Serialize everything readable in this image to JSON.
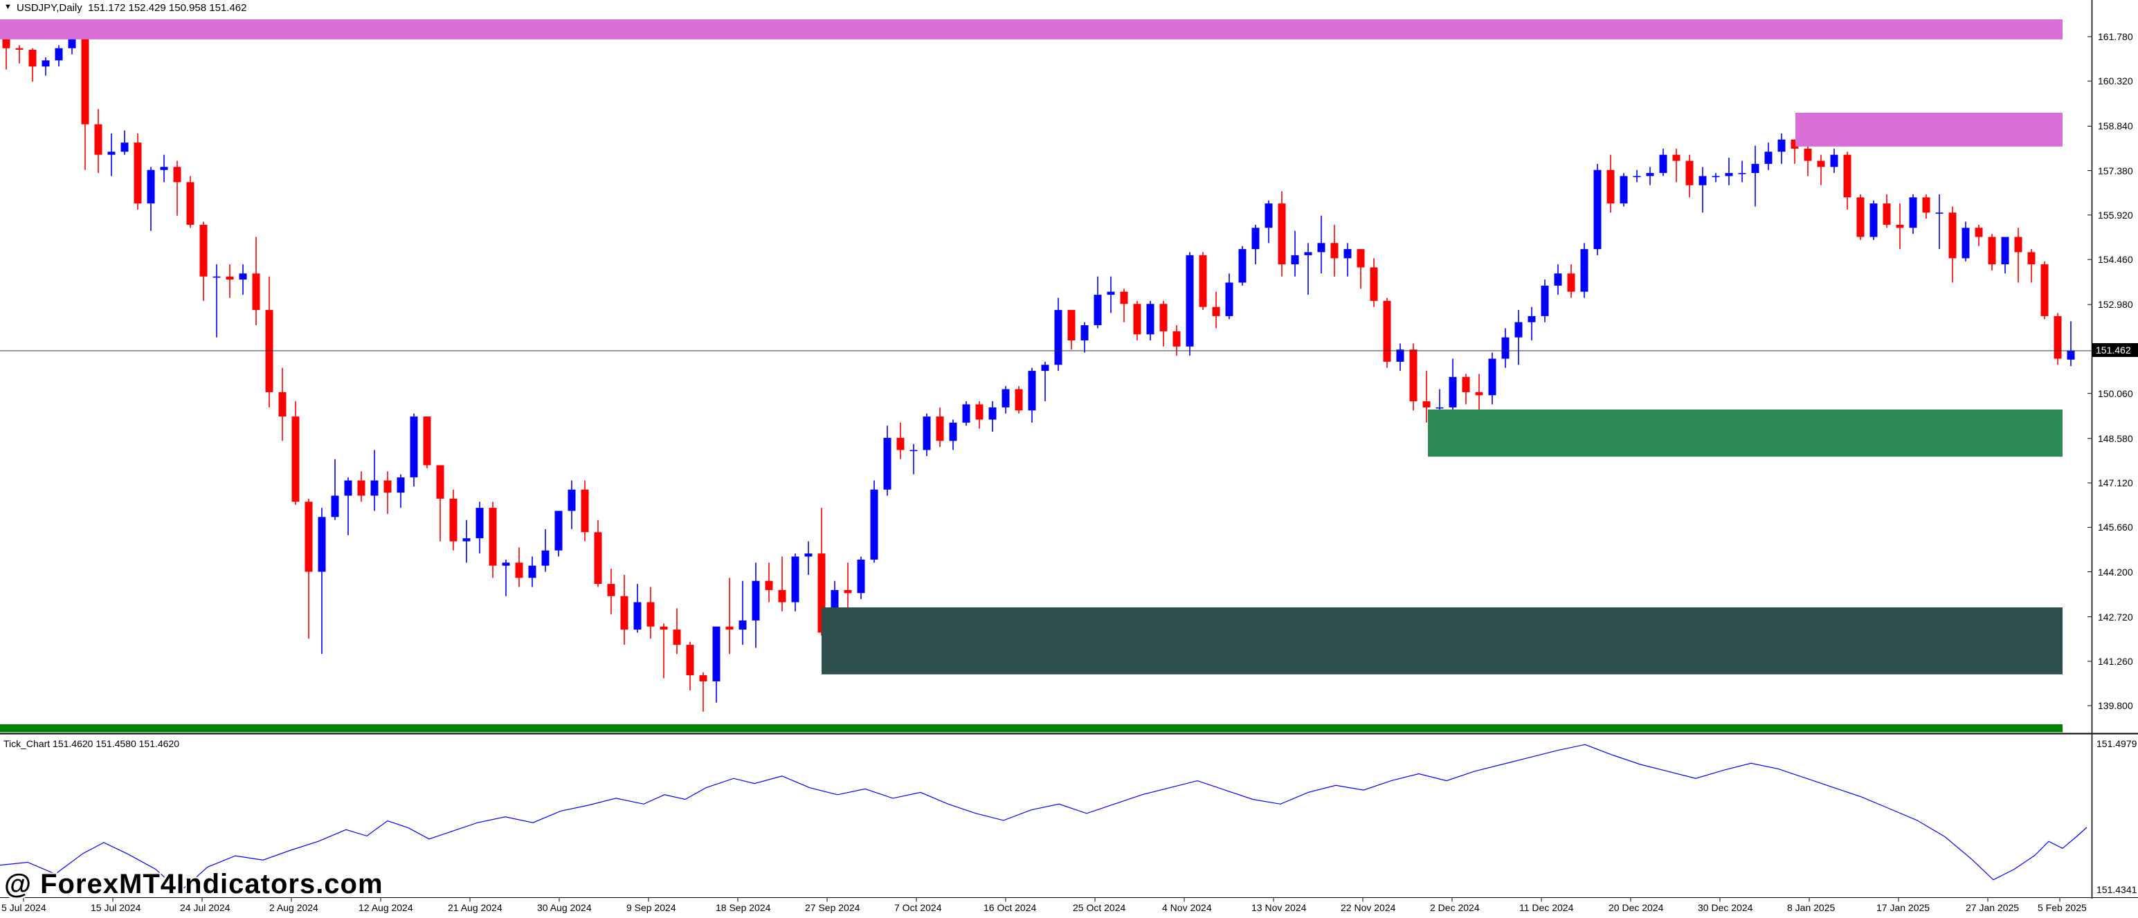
{
  "title": {
    "symbol": "USDJPY,Daily",
    "ohlc": "151.172 152.429 150.958 151.462"
  },
  "icons": {
    "symbol_dropdown": "▼"
  },
  "colors": {
    "bull": "#0000ff",
    "bear": "#ff0000",
    "supply_zone": "#d96fd6",
    "demand_zone": "#2e8b57",
    "deep_demand_zone": "#2f4f4f",
    "support_band": "#008000",
    "bid_line": "#333333",
    "bid_label_bg": "#000000",
    "bid_label_text": "#ffffff",
    "tick_line": "#0000ff",
    "axis_line": "#000000"
  },
  "axis": {
    "price_labels": [
      "161.780",
      "160.320",
      "158.840",
      "157.380",
      "155.920",
      "154.460",
      "152.980",
      "150.060",
      "148.580",
      "147.120",
      "145.660",
      "144.200",
      "142.720",
      "141.260",
      "139.800"
    ],
    "bid_label": "151.462",
    "bid_price": 151.462,
    "date_labels": [
      "5 Jul 2024",
      "15 Jul 2024",
      "24 Jul 2024",
      "2 Aug 2024",
      "12 Aug 2024",
      "21 Aug 2024",
      "30 Aug 2024",
      "9 Sep 2024",
      "18 Sep 2024",
      "27 Sep 2024",
      "7 Oct 2024",
      "16 Oct 2024",
      "25 Oct 2024",
      "4 Nov 2024",
      "13 Nov 2024",
      "22 Nov 2024",
      "2 Dec 2024",
      "11 Dec 2024",
      "20 Dec 2024",
      "30 Dec 2024",
      "8 Jan 2025",
      "17 Jan 2025",
      "27 Jan 2025",
      "5 Feb 2025"
    ]
  },
  "tick_panel": {
    "label": "Tick_Chart 151.4620 151.4580 151.4620",
    "max_label": "151.4979",
    "min_label": "151.4341",
    "max": 151.4979,
    "min": 151.4341,
    "points": [
      [
        0,
        151.4458
      ],
      [
        40,
        151.447
      ],
      [
        80,
        151.442
      ],
      [
        120,
        151.4508
      ],
      [
        150,
        151.4555
      ],
      [
        185,
        151.4505
      ],
      [
        225,
        151.444
      ],
      [
        260,
        151.4345
      ],
      [
        300,
        151.445
      ],
      [
        340,
        151.4498
      ],
      [
        380,
        151.448
      ],
      [
        420,
        151.4522
      ],
      [
        460,
        151.456
      ],
      [
        500,
        151.461
      ],
      [
        530,
        151.4583
      ],
      [
        560,
        151.4648
      ],
      [
        590,
        151.4618
      ],
      [
        620,
        151.457
      ],
      [
        650,
        151.46
      ],
      [
        690,
        151.464
      ],
      [
        730,
        151.4665
      ],
      [
        770,
        151.464
      ],
      [
        810,
        151.469
      ],
      [
        850,
        151.4715
      ],
      [
        890,
        151.4745
      ],
      [
        930,
        151.472
      ],
      [
        960,
        151.476
      ],
      [
        990,
        151.474
      ],
      [
        1020,
        151.479
      ],
      [
        1060,
        151.483
      ],
      [
        1090,
        151.4808
      ],
      [
        1130,
        151.484
      ],
      [
        1170,
        151.479
      ],
      [
        1210,
        151.476
      ],
      [
        1250,
        151.4785
      ],
      [
        1290,
        151.4745
      ],
      [
        1330,
        151.477
      ],
      [
        1370,
        151.472
      ],
      [
        1410,
        151.468
      ],
      [
        1450,
        151.465
      ],
      [
        1490,
        151.4695
      ],
      [
        1530,
        151.472
      ],
      [
        1570,
        151.468
      ],
      [
        1610,
        151.472
      ],
      [
        1650,
        151.476
      ],
      [
        1690,
        151.479
      ],
      [
        1730,
        151.482
      ],
      [
        1770,
        151.478
      ],
      [
        1810,
        151.474
      ],
      [
        1850,
        151.472
      ],
      [
        1890,
        151.477
      ],
      [
        1930,
        151.48
      ],
      [
        1970,
        151.478
      ],
      [
        2010,
        151.482
      ],
      [
        2050,
        151.485
      ],
      [
        2090,
        151.482
      ],
      [
        2130,
        151.486
      ],
      [
        2170,
        151.489
      ],
      [
        2210,
        151.492
      ],
      [
        2250,
        151.495
      ],
      [
        2290,
        151.4975
      ],
      [
        2330,
        151.493
      ],
      [
        2370,
        151.489
      ],
      [
        2410,
        151.486
      ],
      [
        2450,
        151.483
      ],
      [
        2490,
        151.4865
      ],
      [
        2530,
        151.4895
      ],
      [
        2570,
        151.487
      ],
      [
        2610,
        151.483
      ],
      [
        2650,
        151.479
      ],
      [
        2690,
        151.475
      ],
      [
        2730,
        151.47
      ],
      [
        2770,
        151.465
      ],
      [
        2810,
        151.458
      ],
      [
        2850,
        151.448
      ],
      [
        2880,
        151.4395
      ],
      [
        2910,
        151.444
      ],
      [
        2940,
        151.45
      ],
      [
        2960,
        151.456
      ],
      [
        2980,
        151.453
      ],
      [
        3000,
        151.458
      ],
      [
        3015,
        151.462
      ]
    ]
  },
  "watermark": "@ ForexMT4Indicators.com",
  "chart_data": {
    "type": "candlestick",
    "symbol": "USDJPY",
    "timeframe": "Daily",
    "ylim": [
      138.5,
      163.0
    ],
    "current_ohlc": {
      "open": 151.172,
      "high": 152.429,
      "low": 150.958,
      "close": 151.462
    },
    "zones": [
      {
        "name": "supply-zone-top",
        "price_top": 162.35,
        "price_bottom": 161.69,
        "x_start": 0,
        "x_end": 2980,
        "color": "#d96fd6"
      },
      {
        "name": "supply-zone-jan",
        "price_top": 159.28,
        "price_bottom": 158.17,
        "x_start": 2594,
        "x_end": 2980,
        "color": "#d96fd6"
      },
      {
        "name": "demand-zone-dec",
        "price_top": 149.53,
        "price_bottom": 147.98,
        "x_start": 2063,
        "x_end": 2980,
        "color": "#2e8b57"
      },
      {
        "name": "demand-zone-aug",
        "price_top": 143.03,
        "price_bottom": 140.83,
        "x_start": 1187,
        "x_end": 2980,
        "color": "#2f4f4f"
      },
      {
        "name": "support-band",
        "price_top": 139.19,
        "price_bottom": 138.93,
        "x_start": 0,
        "x_end": 2980,
        "color": "#008000"
      }
    ],
    "dates": [
      "2024.07.03",
      "2024.07.04",
      "2024.07.05",
      "2024.07.08",
      "2024.07.09",
      "2024.07.10",
      "2024.07.11",
      "2024.07.12",
      "2024.07.15",
      "2024.07.16",
      "2024.07.17",
      "2024.07.18",
      "2024.07.19",
      "2024.07.22",
      "2024.07.23",
      "2024.07.24",
      "2024.07.25",
      "2024.07.26",
      "2024.07.29",
      "2024.07.30",
      "2024.07.31",
      "2024.08.01",
      "2024.08.02",
      "2024.08.05",
      "2024.08.06",
      "2024.08.07",
      "2024.08.08",
      "2024.08.09",
      "2024.08.12",
      "2024.08.13",
      "2024.08.14",
      "2024.08.15",
      "2024.08.16",
      "2024.08.19",
      "2024.08.20",
      "2024.08.21",
      "2024.08.22",
      "2024.08.23",
      "2024.08.26",
      "2024.08.27",
      "2024.08.28",
      "2024.08.29",
      "2024.08.30",
      "2024.09.02",
      "2024.09.03",
      "2024.09.04",
      "2024.09.05",
      "2024.09.06",
      "2024.09.09",
      "2024.09.10",
      "2024.09.11",
      "2024.09.12",
      "2024.09.13",
      "2024.09.16",
      "2024.09.17",
      "2024.09.18",
      "2024.09.19",
      "2024.09.20",
      "2024.09.23",
      "2024.09.24",
      "2024.09.25",
      "2024.09.26",
      "2024.09.27",
      "2024.09.30",
      "2024.10.01",
      "2024.10.02",
      "2024.10.03",
      "2024.10.04",
      "2024.10.07",
      "2024.10.08",
      "2024.10.09",
      "2024.10.10",
      "2024.10.11",
      "2024.10.14",
      "2024.10.15",
      "2024.10.16",
      "2024.10.17",
      "2024.10.18",
      "2024.10.21",
      "2024.10.22",
      "2024.10.23",
      "2024.10.24",
      "2024.10.25",
      "2024.10.28",
      "2024.10.29",
      "2024.10.30",
      "2024.10.31",
      "2024.11.01",
      "2024.11.04",
      "2024.11.05",
      "2024.11.06",
      "2024.11.07",
      "2024.11.08",
      "2024.11.11",
      "2024.11.12",
      "2024.11.13",
      "2024.11.14",
      "2024.11.15",
      "2024.11.18",
      "2024.11.19",
      "2024.11.20",
      "2024.11.21",
      "2024.11.22",
      "2024.11.25",
      "2024.11.26",
      "2024.11.27",
      "2024.11.28",
      "2024.11.29",
      "2024.12.02",
      "2024.12.03",
      "2024.12.04",
      "2024.12.05",
      "2024.12.06",
      "2024.12.09",
      "2024.12.10",
      "2024.12.11",
      "2024.12.12",
      "2024.12.13",
      "2024.12.16",
      "2024.12.17",
      "2024.12.18",
      "2024.12.19",
      "2024.12.20",
      "2024.12.23",
      "2024.12.24",
      "2024.12.25",
      "2024.12.26",
      "2024.12.27",
      "2024.12.30",
      "2024.12.31",
      "2025.01.01",
      "2025.01.02",
      "2025.01.03",
      "2025.01.06",
      "2025.01.07",
      "2025.01.08",
      "2025.01.09",
      "2025.01.10",
      "2025.01.13",
      "2025.01.14",
      "2025.01.15",
      "2025.01.16",
      "2025.01.17",
      "2025.01.20",
      "2025.01.21",
      "2025.01.22",
      "2025.01.23",
      "2025.01.24",
      "2025.01.27",
      "2025.01.28",
      "2025.01.29",
      "2025.01.30",
      "2025.01.31",
      "2025.02.03",
      "2025.02.04",
      "2025.02.05",
      "2025.02.06",
      "2025.02.07"
    ],
    "open": [
      161.7,
      161.4,
      161.35,
      160.8,
      161.0,
      161.4,
      161.7,
      158.9,
      157.9,
      158.0,
      158.3,
      156.3,
      157.4,
      157.5,
      157.0,
      155.6,
      153.9,
      153.9,
      153.8,
      154.0,
      152.8,
      150.1,
      149.3,
      146.5,
      144.2,
      146.0,
      146.7,
      147.2,
      146.7,
      147.2,
      146.8,
      147.3,
      149.3,
      147.7,
      146.6,
      145.2,
      145.3,
      146.3,
      144.4,
      144.5,
      144.0,
      144.4,
      144.9,
      146.2,
      146.9,
      145.5,
      143.8,
      143.4,
      142.3,
      143.2,
      142.4,
      142.3,
      141.8,
      140.8,
      140.6,
      142.4,
      142.3,
      142.6,
      143.9,
      143.6,
      143.2,
      144.7,
      144.8,
      142.2,
      143.6,
      143.5,
      144.6,
      146.9,
      148.6,
      148.2,
      148.2,
      149.3,
      148.5,
      149.1,
      149.7,
      149.2,
      149.6,
      150.2,
      149.5,
      150.8,
      151.0,
      152.8,
      151.8,
      152.3,
      153.3,
      153.4,
      153.0,
      152.0,
      153.0,
      152.1,
      151.6,
      154.6,
      152.9,
      152.6,
      153.7,
      154.8,
      155.5,
      156.3,
      154.3,
      154.6,
      154.7,
      155.0,
      154.5,
      154.8,
      154.2,
      153.1,
      151.1,
      151.5,
      149.8,
      149.6,
      149.6,
      150.6,
      150.1,
      150.0,
      151.2,
      151.9,
      152.4,
      152.6,
      153.6,
      154.0,
      153.4,
      154.8,
      157.4,
      156.3,
      157.2,
      157.2,
      157.3,
      157.9,
      157.7,
      156.9,
      157.2,
      157.2,
      157.3,
      157.3,
      157.6,
      158.0,
      158.4,
      158.1,
      157.7,
      157.5,
      157.9,
      156.5,
      155.2,
      156.3,
      155.6,
      155.5,
      156.5,
      156.0,
      156.0,
      154.5,
      155.5,
      155.2,
      154.3,
      155.2,
      154.7,
      154.3,
      152.6,
      151.172
    ],
    "high": [
      161.9,
      161.5,
      161.4,
      161.1,
      161.5,
      161.85,
      161.8,
      159.4,
      158.6,
      158.7,
      158.6,
      157.5,
      157.9,
      157.7,
      157.2,
      155.7,
      154.3,
      154.3,
      154.3,
      155.2,
      153.9,
      150.9,
      149.8,
      146.6,
      146.3,
      147.9,
      147.3,
      147.5,
      148.2,
      147.5,
      147.4,
      149.4,
      149.3,
      147.7,
      146.9,
      145.9,
      146.5,
      146.5,
      144.6,
      145.0,
      144.7,
      145.6,
      146.2,
      147.2,
      147.2,
      145.9,
      144.3,
      144.1,
      143.8,
      143.7,
      142.5,
      143.0,
      141.9,
      140.9,
      142.4,
      144.0,
      143.9,
      144.5,
      144.5,
      144.7,
      144.8,
      145.2,
      146.3,
      143.9,
      144.5,
      144.7,
      147.2,
      149.0,
      149.1,
      148.4,
      149.4,
      149.6,
      149.2,
      149.8,
      149.8,
      149.8,
      150.3,
      150.3,
      150.9,
      151.1,
      153.2,
      152.8,
      152.4,
      153.9,
      153.9,
      153.5,
      153.1,
      153.1,
      153.1,
      152.3,
      154.7,
      154.7,
      153.4,
      154.0,
      154.9,
      155.6,
      156.4,
      156.7,
      155.4,
      155.0,
      155.9,
      155.6,
      155.0,
      154.8,
      154.5,
      153.2,
      151.7,
      151.7,
      150.8,
      150.2,
      151.2,
      150.7,
      150.7,
      151.4,
      152.2,
      152.8,
      152.9,
      153.8,
      154.3,
      154.3,
      155.0,
      157.6,
      157.9,
      157.3,
      157.4,
      157.5,
      158.1,
      158.1,
      157.9,
      157.5,
      157.3,
      157.8,
      157.7,
      158.2,
      158.3,
      158.6,
      158.4,
      158.9,
      157.9,
      158.1,
      158.0,
      156.6,
      156.4,
      156.6,
      156.3,
      156.6,
      156.6,
      156.6,
      156.2,
      155.7,
      155.6,
      155.3,
      155.2,
      155.5,
      154.8,
      154.4,
      152.7,
      152.429
    ],
    "low": [
      160.7,
      160.9,
      160.3,
      160.5,
      160.8,
      161.2,
      157.4,
      157.3,
      157.2,
      157.9,
      156.1,
      155.4,
      157.0,
      155.9,
      155.5,
      153.1,
      151.9,
      153.2,
      153.3,
      152.3,
      149.6,
      148.5,
      146.4,
      142.0,
      141.5,
      145.9,
      145.4,
      146.5,
      146.2,
      146.1,
      146.3,
      147.0,
      147.6,
      145.2,
      144.9,
      144.5,
      144.8,
      144.0,
      143.4,
      143.7,
      143.7,
      144.2,
      144.7,
      145.6,
      145.2,
      143.7,
      142.8,
      141.8,
      142.2,
      142.0,
      140.7,
      141.5,
      140.3,
      139.6,
      139.9,
      141.5,
      141.8,
      141.7,
      143.2,
      142.9,
      142.9,
      144.1,
      142.1,
      141.9,
      143.0,
      143.3,
      144.5,
      146.7,
      147.9,
      147.4,
      148.0,
      148.3,
      148.2,
      149.0,
      148.9,
      148.8,
      149.4,
      149.4,
      149.1,
      149.8,
      150.8,
      151.5,
      151.4,
      152.2,
      152.7,
      152.4,
      151.8,
      151.8,
      151.6,
      151.3,
      151.3,
      152.8,
      152.2,
      152.5,
      153.6,
      154.3,
      155.0,
      153.9,
      153.9,
      153.3,
      154.0,
      153.9,
      153.9,
      153.5,
      152.9,
      150.9,
      150.8,
      149.5,
      149.1,
      148.6,
      149.4,
      149.7,
      149.4,
      149.7,
      150.9,
      151.0,
      151.8,
      152.4,
      153.3,
      153.2,
      153.2,
      154.6,
      156.0,
      156.2,
      157.0,
      156.9,
      157.2,
      157.0,
      156.5,
      156.0,
      157.0,
      156.9,
      157.0,
      156.2,
      157.4,
      157.6,
      157.6,
      157.2,
      156.9,
      157.3,
      156.1,
      155.1,
      155.1,
      155.5,
      154.8,
      155.3,
      155.8,
      154.8,
      153.7,
      154.4,
      154.9,
      154.1,
      154.0,
      153.7,
      153.7,
      152.5,
      151.0,
      150.958
    ],
    "close": [
      161.4,
      161.35,
      160.8,
      161.0,
      161.4,
      161.75,
      158.9,
      157.9,
      158.0,
      158.3,
      156.3,
      157.4,
      157.5,
      157.0,
      155.6,
      153.9,
      153.9,
      153.8,
      154.0,
      152.8,
      150.1,
      149.3,
      146.5,
      144.2,
      146.0,
      146.7,
      147.2,
      146.7,
      147.2,
      146.8,
      147.3,
      149.3,
      147.7,
      146.6,
      145.2,
      145.3,
      146.3,
      144.4,
      144.5,
      144.0,
      144.4,
      144.9,
      146.2,
      146.9,
      145.5,
      143.8,
      143.4,
      142.3,
      143.2,
      142.4,
      142.3,
      141.8,
      140.8,
      140.6,
      142.4,
      142.3,
      142.6,
      143.9,
      143.6,
      143.2,
      144.7,
      144.8,
      142.2,
      143.6,
      143.5,
      144.6,
      146.9,
      148.6,
      148.2,
      148.2,
      149.3,
      148.5,
      149.1,
      149.7,
      149.2,
      149.6,
      150.2,
      149.5,
      150.8,
      151.0,
      152.8,
      151.8,
      152.3,
      153.3,
      153.4,
      153.0,
      152.0,
      153.0,
      152.1,
      151.6,
      154.6,
      152.9,
      152.6,
      153.7,
      154.8,
      155.5,
      156.3,
      154.3,
      154.6,
      154.7,
      155.0,
      154.5,
      154.8,
      154.2,
      153.1,
      151.1,
      151.5,
      149.8,
      149.6,
      149.6,
      150.6,
      150.1,
      150.0,
      151.2,
      151.9,
      152.4,
      152.6,
      153.6,
      154.0,
      153.4,
      154.8,
      157.4,
      156.3,
      157.2,
      157.2,
      157.3,
      157.9,
      157.7,
      156.9,
      157.2,
      157.2,
      157.3,
      157.3,
      157.6,
      158.0,
      158.4,
      158.1,
      157.7,
      157.5,
      157.9,
      156.5,
      155.2,
      156.3,
      155.6,
      155.5,
      156.5,
      156.0,
      156.0,
      154.5,
      155.5,
      155.2,
      154.3,
      155.2,
      154.7,
      154.3,
      152.6,
      151.2,
      151.462
    ]
  }
}
